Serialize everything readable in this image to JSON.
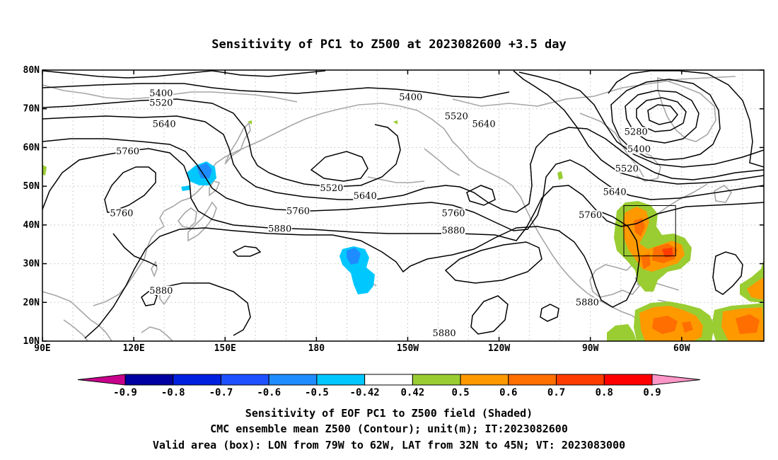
{
  "title": "Sensitivity of PC1 to Z500 at 2023082600 +3.5 day",
  "lat_ticks": [
    "80N",
    "70N",
    "60N",
    "50N",
    "40N",
    "30N",
    "20N",
    "10N"
  ],
  "lon_ticks": [
    "90E",
    "120E",
    "150E",
    "180",
    "150W",
    "120W",
    "90W",
    "60W"
  ],
  "contour_labels": [
    {
      "text": "5400",
      "lon": 129,
      "lat": 74
    },
    {
      "text": "5520",
      "lon": 129,
      "lat": 71.5
    },
    {
      "text": "5640",
      "lon": 130,
      "lat": 66
    },
    {
      "text": "5760",
      "lon": 118,
      "lat": 59
    },
    {
      "text": "5760",
      "lon": 116,
      "lat": 43
    },
    {
      "text": "5880",
      "lon": 129,
      "lat": 23
    },
    {
      "text": "5400",
      "lon": 211,
      "lat": 73
    },
    {
      "text": "5520",
      "lon": 185,
      "lat": 49.5
    },
    {
      "text": "5640",
      "lon": 196,
      "lat": 47.5
    },
    {
      "text": "5760",
      "lon": 174,
      "lat": 43.5
    },
    {
      "text": "5880",
      "lon": 168,
      "lat": 39
    },
    {
      "text": "5520",
      "lon": 226,
      "lat": 68
    },
    {
      "text": "5640",
      "lon": 235,
      "lat": 66
    },
    {
      "text": "5760",
      "lon": 225,
      "lat": 43
    },
    {
      "text": "5880",
      "lon": 225,
      "lat": 38.5
    },
    {
      "text": "5280",
      "lon": 285,
      "lat": 64
    },
    {
      "text": "5400",
      "lon": 286,
      "lat": 59.5
    },
    {
      "text": "5520",
      "lon": 282,
      "lat": 54.5
    },
    {
      "text": "5640",
      "lon": 278,
      "lat": 48.5
    },
    {
      "text": "5760",
      "lon": 270,
      "lat": 42.5
    },
    {
      "text": "5880",
      "lon": 269,
      "lat": 20
    },
    {
      "text": "5880",
      "lon": 222,
      "lat": 12
    }
  ],
  "colorbar": {
    "labels": [
      "-0.9",
      "-0.8",
      "-0.7",
      "-0.6",
      "-0.5",
      "-0.42",
      "0.42",
      "0.5",
      "0.6",
      "0.7",
      "0.8",
      "0.9"
    ],
    "colors": [
      "#0000a0",
      "#0020e0",
      "#1e50ff",
      "#1e8cff",
      "#00c8ff",
      "#ffffff",
      "#9acd32",
      "#ff9900",
      "#ff6e00",
      "#ff3c00",
      "#ff0000"
    ],
    "low_color": "#c8008c",
    "high_color": "#ff96c8"
  },
  "valid_box": {
    "lon_min": -79,
    "lon_max": -62,
    "lat_min": 32,
    "lat_max": 45
  },
  "caption": [
    "Sensitivity of EOF PC1 to Z500 field (Shaded)",
    "CMC ensemble mean Z500 (Contour); unit(m); IT:2023082600",
    "Valid area (box): LON from 79W to 62W, LAT from 32N to 45N; VT: 2023083000"
  ]
}
